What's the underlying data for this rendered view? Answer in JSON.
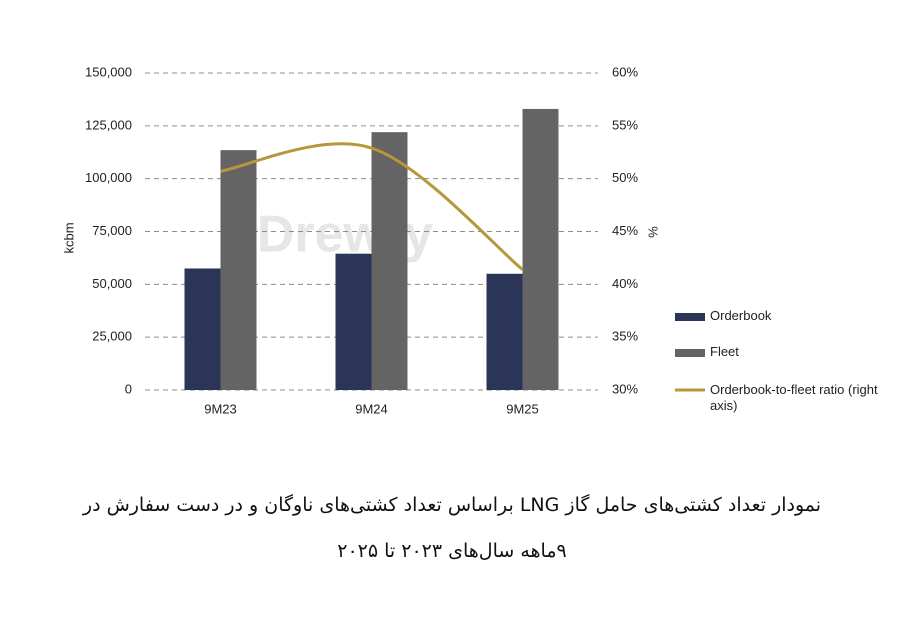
{
  "chart_data": {
    "type": "bar",
    "categories": [
      "9M23",
      "9M24",
      "9M25"
    ],
    "series": [
      {
        "name": "Orderbook",
        "color": "#2b3557",
        "values": [
          57500,
          64500,
          55000
        ]
      },
      {
        "name": "Fleet",
        "color": "#646464",
        "values": [
          113500,
          122000,
          133000
        ]
      },
      {
        "name": "Orderbook-to-fleet ratio (right axis)",
        "color": "#b8963a",
        "type": "line",
        "axis": "y2",
        "values": [
          50.7,
          52.9,
          41.4
        ]
      }
    ],
    "ylabel": "kcbm",
    "y2label": "%",
    "ylim": [
      0,
      150000
    ],
    "yticks": [
      0,
      {
        "value": 25000,
        "label": "25,000"
      },
      {
        "value": 50000,
        "label": "50,000"
      },
      {
        "value": 75000,
        "label": "75,000"
      },
      {
        "value": 100000,
        "label": "100,000"
      },
      {
        "value": 125000,
        "label": "125,000"
      },
      {
        "value": 150000,
        "label": "150,000"
      }
    ],
    "y2lim": [
      30,
      60
    ],
    "y2ticks": [
      {
        "value": 30,
        "label": "30%"
      },
      {
        "value": 35,
        "label": "35%"
      },
      {
        "value": 40,
        "label": "40%"
      },
      {
        "value": 45,
        "label": "45%"
      },
      {
        "value": 50,
        "label": "50%"
      },
      {
        "value": 55,
        "label": "55%"
      },
      {
        "value": 60,
        "label": "60%"
      }
    ],
    "grid": true,
    "legend": "right",
    "watermark": "Drewry"
  },
  "caption": [
    "نمودار تعداد کشتی‌های حامل گاز LNG براساس تعداد کشتی‌های ناوگان و در دست سفارش در",
    "۹ماهه سال‌های ۲۰۲۳ تا ۲۰۲۵"
  ]
}
